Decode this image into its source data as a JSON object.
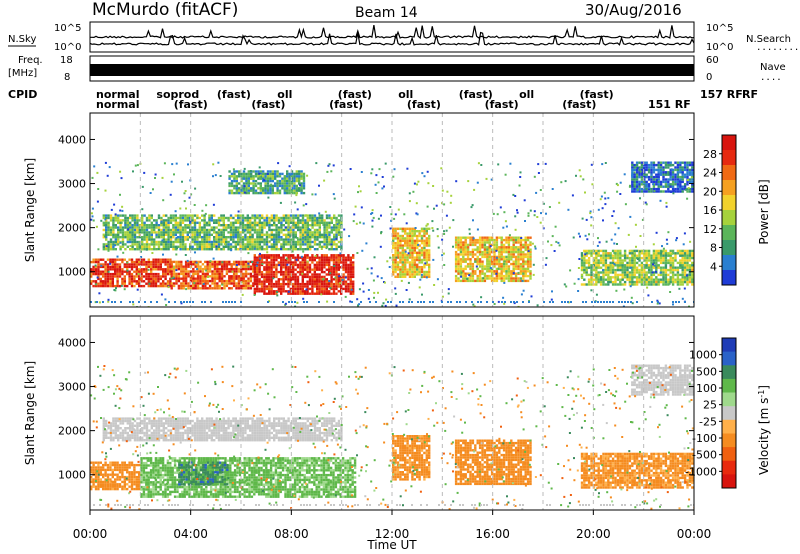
{
  "header": {
    "station": "McMurdo (fitACF)",
    "beam": "Beam 14",
    "date": "30/Aug/2016"
  },
  "left_labels": {
    "nsky": "N.Sky",
    "freq": "Freq.",
    "freq_unit": "[MHz]",
    "cpid": "CPID"
  },
  "right_labels": {
    "nsearch": "N.Search",
    "nsearch_dots": "........",
    "nave": "Nave",
    "nave_dots": "....",
    "rf": "RF"
  },
  "noise_ticks": {
    "left_top": "10^5",
    "left_bottom": "10^0",
    "right_top": "10^5",
    "right_bottom": "10^0"
  },
  "freq_ticks": {
    "left_top": "18",
    "left_bottom": "8",
    "right_top": "60",
    "right_bottom": "0"
  },
  "cpid_text": {
    "row1": [
      "normal",
      "soprod",
      "(fast)",
      "oll",
      "(fast)",
      "oll",
      "(fast)",
      "oll",
      "(fast)"
    ],
    "row2": [
      "normal",
      "(fast)",
      "(fast)",
      "(fast)",
      "(fast)",
      "(fast)",
      "(fast)"
    ],
    "right1": "157 RF",
    "right2": "151 RF"
  },
  "x_axis": {
    "label": "Time UT",
    "ticks": [
      "00:00",
      "04:00",
      "08:00",
      "12:00",
      "16:00",
      "20:00",
      "00:00"
    ]
  },
  "chart_data": [
    {
      "type": "heatmap",
      "title": "Power",
      "ylabel": "Slant Range [km]",
      "xlabel": "Time UT",
      "xlim": [
        0,
        24
      ],
      "ylim": [
        200,
        4600
      ],
      "yticks": [
        1000,
        2000,
        3000,
        4000
      ],
      "colorbar": {
        "label": "Power [dB]",
        "ticks": [
          4,
          8,
          12,
          16,
          20,
          24,
          28
        ],
        "colors": [
          "#1f3cd6",
          "#2a7fd0",
          "#3a9a6a",
          "#5bb55a",
          "#a6d23c",
          "#f2d22c",
          "#f5a020",
          "#f06a14",
          "#e62a10",
          "#d8140e"
        ]
      },
      "regions": [
        {
          "t0": 0.0,
          "t1": 3.2,
          "r0": 700,
          "r1": 1300,
          "value": 26
        },
        {
          "t0": 3.2,
          "t1": 6.5,
          "r0": 650,
          "r1": 1250,
          "value": 24
        },
        {
          "t0": 6.5,
          "t1": 10.5,
          "r0": 500,
          "r1": 1400,
          "value": 28
        },
        {
          "t0": 0.5,
          "t1": 10.0,
          "r0": 1500,
          "r1": 2300,
          "value": 12
        },
        {
          "t0": 5.5,
          "t1": 8.5,
          "r0": 2800,
          "r1": 3300,
          "value": 10
        },
        {
          "t0": 12.0,
          "t1": 13.5,
          "r0": 900,
          "r1": 2000,
          "value": 18
        },
        {
          "t0": 14.5,
          "t1": 17.5,
          "r0": 800,
          "r1": 1800,
          "value": 18
        },
        {
          "t0": 19.5,
          "t1": 24.0,
          "r0": 700,
          "r1": 1500,
          "value": 14
        },
        {
          "t0": 21.5,
          "t1": 24.0,
          "r0": 2800,
          "r1": 3500,
          "value": 6
        }
      ]
    },
    {
      "type": "heatmap",
      "title": "Velocity",
      "ylabel": "Slant Range [km]",
      "xlabel": "Time UT",
      "xlim": [
        0,
        24
      ],
      "ylim": [
        200,
        4600
      ],
      "yticks": [
        1000,
        2000,
        3000,
        4000
      ],
      "colorbar": {
        "label": "Velocity [m s^-1]",
        "ticks": [
          1000,
          500,
          100,
          25,
          -25,
          -100,
          -500,
          -1000
        ],
        "colors": [
          "#1f3cb6",
          "#2a62c8",
          "#3a8a5c",
          "#5fb84a",
          "#9fd98c",
          "#c8c8c8",
          "#ffb04a",
          "#f58c20",
          "#f06010",
          "#e82a0e",
          "#d8140e"
        ]
      },
      "regions": [
        {
          "t0": 0.0,
          "t1": 2.0,
          "r0": 700,
          "r1": 1300,
          "value": -200
        },
        {
          "t0": 2.0,
          "t1": 10.5,
          "r0": 500,
          "r1": 1400,
          "value": 150
        },
        {
          "t0": 3.5,
          "t1": 5.5,
          "r0": 800,
          "r1": 1300,
          "value": 700
        },
        {
          "t0": 0.5,
          "t1": 10.0,
          "r0": 1800,
          "r1": 2300,
          "value": 0
        },
        {
          "t0": 12.0,
          "t1": 13.5,
          "r0": 900,
          "r1": 1900,
          "value": -200
        },
        {
          "t0": 14.5,
          "t1": 17.5,
          "r0": 800,
          "r1": 1800,
          "value": -250
        },
        {
          "t0": 19.5,
          "t1": 24.0,
          "r0": 700,
          "r1": 1500,
          "value": -150
        },
        {
          "t0": 21.5,
          "t1": 24.0,
          "r0": 2800,
          "r1": 3500,
          "value": 0
        }
      ]
    }
  ],
  "colors": {
    "frame": "#000000",
    "dashed_grid": "#bbbbbb"
  }
}
